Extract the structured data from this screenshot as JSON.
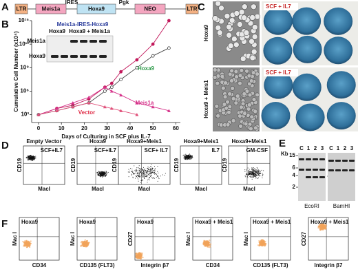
{
  "panel_a": {
    "letter": "A",
    "elements": [
      "LTR",
      "Meis1a",
      "IRES",
      "Hoxa9",
      "Pgk",
      "NEO",
      "LTR"
    ]
  },
  "chart_data": {
    "type": "line",
    "letter": "B",
    "ylabel": "Cumulative Cell Number (x10⁴)",
    "xlabel": "Days of Culturing in SCF plus IL-7",
    "x": [
      0,
      8,
      15,
      22,
      29,
      32,
      36,
      43,
      50,
      57
    ],
    "xlim": [
      -3,
      62
    ],
    "xticks": [
      0,
      10,
      20,
      30,
      40,
      50,
      60
    ],
    "ylim": [
      100,
      1000000000000000.0
    ],
    "log_scale": true,
    "yticks": [
      {
        "value": 1000,
        "label": "10³"
      },
      {
        "value": 1000000,
        "label": "10⁶"
      },
      {
        "value": 1000000000,
        "label": "10⁹"
      },
      {
        "value": 1000000000000,
        "label": "10¹²"
      },
      {
        "value": 1000000000000000.0,
        "label": "10¹⁵"
      }
    ],
    "series": [
      {
        "name": "Meis1a-IRES-Hoxa9",
        "color": "#c2185b",
        "label_color": "#2b3d9c",
        "marker": "filled",
        "values": [
          1000,
          6300,
          16000,
          100000,
          3200000,
          10000000,
          300000000,
          10000000000,
          1000000000000,
          1000000000000000.0
        ]
      },
      {
        "name": "Hoxa9",
        "color": "#444",
        "label_color": "#2e9a4a",
        "marker": "open",
        "values": [
          1000,
          3200,
          10000,
          32000,
          1000000,
          3200000,
          32000000,
          1000000000,
          32000000000,
          320000000000
        ]
      },
      {
        "name": "Meis1a",
        "color": "#d6338a",
        "label_color": "#d6338a",
        "marker": "triangle",
        "values": [
          1000,
          6300,
          32000,
          160000,
          3200000,
          1000000,
          320000,
          32000,
          10000,
          3200
        ]
      },
      {
        "name": "Vector",
        "color": "#e0507a",
        "label_color": "#e0304a",
        "marker": "triangle",
        "values": [
          1000,
          3200,
          10000,
          32000,
          10000,
          6300,
          3200,
          1000,
          null,
          null
        ]
      }
    ],
    "inset": {
      "lanes": [
        "Hoxa9",
        "Hoxa9 + Meis1a"
      ],
      "rows": [
        "Meis1a",
        "Hoxa9"
      ]
    }
  },
  "panel_c": {
    "letter": "C",
    "rows": [
      "Hoxa9",
      "Hoxa9 + Meis1"
    ],
    "conditions": [
      "SCF + IL7",
      "SCF + IL7"
    ]
  },
  "panel_d": {
    "letter": "D",
    "ylabel": "CD19",
    "xlabel": "MacI",
    "plots": [
      {
        "title": "Empty Vector",
        "condition": "SCF+IL7"
      },
      {
        "title": "Hoxa9",
        "condition": "SCF+IL7"
      },
      {
        "title": "Hoxa9+Meis1",
        "condition": "SCF+ IL7"
      },
      {
        "title": "Hoxa9+Meis1",
        "condition": "IL7"
      },
      {
        "title": "Hoxa9+Meis1",
        "condition": "GM-CSF"
      }
    ]
  },
  "panel_e": {
    "letter": "E",
    "unit": "Kb",
    "sizes": [
      "15",
      "6",
      "4",
      "2"
    ],
    "lanes": [
      "C",
      "1",
      "2",
      "3"
    ],
    "enzymes": [
      "EcoRI",
      "BamHI"
    ]
  },
  "panel_f": {
    "letter": "F",
    "plots": [
      {
        "title": "Hoxa9",
        "ylabel": "Mac I",
        "xlabel": "CD34"
      },
      {
        "title": "Hoxa9",
        "ylabel": "Mac I",
        "xlabel": "CD135 (FLT3)"
      },
      {
        "title": "Hoxa9",
        "ylabel": "CD27",
        "xlabel": "Integrin β7"
      },
      {
        "title": "Hoxa9 + Meis1",
        "ylabel": "Mac I",
        "xlabel": "CD34"
      },
      {
        "title": "Hoxa9 + Meis1",
        "ylabel": "Mac I",
        "xlabel": "CD135 (FLT3)"
      },
      {
        "title": "Hoxa9 + Meis1",
        "ylabel": "CD27",
        "xlabel": "Integrin β7"
      }
    ]
  }
}
